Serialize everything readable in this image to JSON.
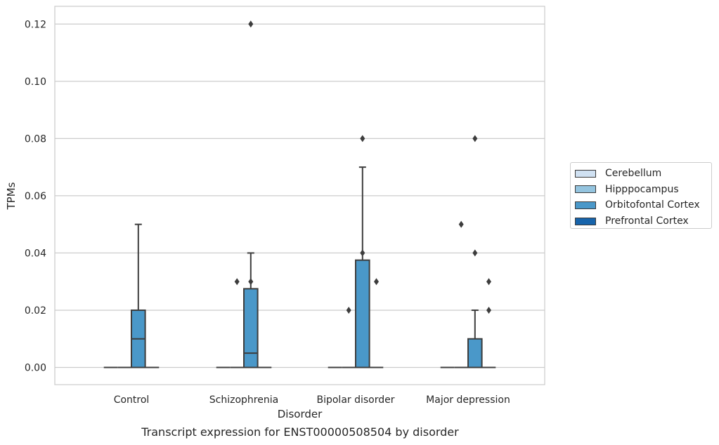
{
  "caption": "Transcript expression for ENST00000508504 by disorder",
  "chart_data": {
    "type": "box",
    "xlabel": "Disorder",
    "ylabel": "TPMs",
    "ylim": [
      -0.006,
      0.126
    ],
    "yticks": [
      0.0,
      0.02,
      0.04,
      0.06,
      0.08,
      0.1,
      0.12
    ],
    "ytick_labels": [
      "0.00",
      "0.02",
      "0.04",
      "0.06",
      "0.08",
      "0.10",
      "0.12"
    ],
    "grid": "horizontal",
    "categories": [
      "Control",
      "Schizophrenia",
      "Bipolar disorder",
      "Major depression"
    ],
    "legend_position": "right",
    "series": [
      {
        "name": "Cerebellum",
        "color": "#d0e1f2",
        "boxes": [
          {
            "q1": 0,
            "median": 0,
            "q3": 0,
            "whisker_low": 0,
            "whisker_high": 0,
            "outliers": []
          },
          {
            "q1": 0,
            "median": 0,
            "q3": 0,
            "whisker_low": 0,
            "whisker_high": 0,
            "outliers": []
          },
          {
            "q1": 0,
            "median": 0,
            "q3": 0,
            "whisker_low": 0,
            "whisker_high": 0,
            "outliers": []
          },
          {
            "q1": 0,
            "median": 0,
            "q3": 0,
            "whisker_low": 0,
            "whisker_high": 0,
            "outliers": []
          }
        ]
      },
      {
        "name": "Hipppocampus",
        "color": "#94c4df",
        "boxes": [
          {
            "q1": 0,
            "median": 0,
            "q3": 0,
            "whisker_low": 0,
            "whisker_high": 0,
            "outliers": []
          },
          {
            "q1": 0,
            "median": 0,
            "q3": 0,
            "whisker_low": 0,
            "whisker_high": 0,
            "outliers": [
              0.03
            ]
          },
          {
            "q1": 0,
            "median": 0,
            "q3": 0,
            "whisker_low": 0,
            "whisker_high": 0,
            "outliers": [
              0.02
            ]
          },
          {
            "q1": 0,
            "median": 0,
            "q3": 0,
            "whisker_low": 0,
            "whisker_high": 0,
            "outliers": [
              0.05
            ]
          }
        ]
      },
      {
        "name": "Orbitofontal Cortex",
        "color": "#4a98c9",
        "boxes": [
          {
            "q1": 0,
            "median": 0.01,
            "q3": 0.02,
            "whisker_low": 0,
            "whisker_high": 0.05,
            "outliers": []
          },
          {
            "q1": 0,
            "median": 0.005,
            "q3": 0.0275,
            "whisker_low": 0,
            "whisker_high": 0.04,
            "outliers": [
              0.03,
              0.12
            ]
          },
          {
            "q1": 0,
            "median": 0,
            "q3": 0.0375,
            "whisker_low": 0,
            "whisker_high": 0.07,
            "outliers": [
              0.04,
              0.08
            ]
          },
          {
            "q1": 0,
            "median": 0,
            "q3": 0.01,
            "whisker_low": 0,
            "whisker_high": 0.02,
            "outliers": [
              0.04,
              0.08
            ]
          }
        ]
      },
      {
        "name": "Prefrontal Cortex",
        "color": "#1764ab",
        "boxes": [
          {
            "q1": 0,
            "median": 0,
            "q3": 0,
            "whisker_low": 0,
            "whisker_high": 0,
            "outliers": []
          },
          {
            "q1": 0,
            "median": 0,
            "q3": 0,
            "whisker_low": 0,
            "whisker_high": 0,
            "outliers": []
          },
          {
            "q1": 0,
            "median": 0,
            "q3": 0,
            "whisker_low": 0,
            "whisker_high": 0,
            "outliers": [
              0.03
            ]
          },
          {
            "q1": 0,
            "median": 0,
            "q3": 0,
            "whisker_low": 0,
            "whisker_high": 0,
            "outliers": [
              0.02,
              0.03
            ]
          }
        ]
      }
    ]
  }
}
